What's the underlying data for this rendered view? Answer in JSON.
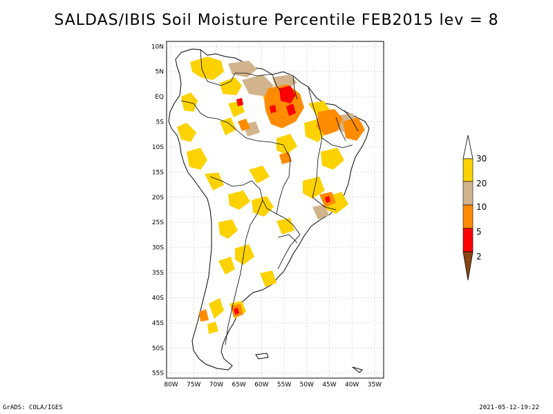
{
  "title": "SALDAS/IBIS Soil Moisture Percentile FEB2015 lev = 8",
  "lat_ticks": [
    "10N",
    "5N",
    "EQ",
    "5S",
    "10S",
    "15S",
    "20S",
    "25S",
    "30S",
    "35S",
    "40S",
    "45S",
    "50S",
    "55S"
  ],
  "lon_ticks": [
    "80W",
    "75W",
    "70W",
    "65W",
    "60W",
    "55W",
    "50W",
    "45W",
    "40W",
    "35W"
  ],
  "map_extent": {
    "lon": [
      -81,
      -33
    ],
    "lat": [
      -56,
      11
    ]
  },
  "legend": {
    "labels": [
      "30",
      "20",
      "10",
      "5",
      "2"
    ],
    "colors": [
      "#ffffff",
      "#fcd200",
      "#d2b48c",
      "#ff8c00",
      "#ff0000",
      "#8b4513"
    ]
  },
  "footer": {
    "left": "GrADS: COLA/IGES",
    "right": "2021-05-12-19:22"
  }
}
